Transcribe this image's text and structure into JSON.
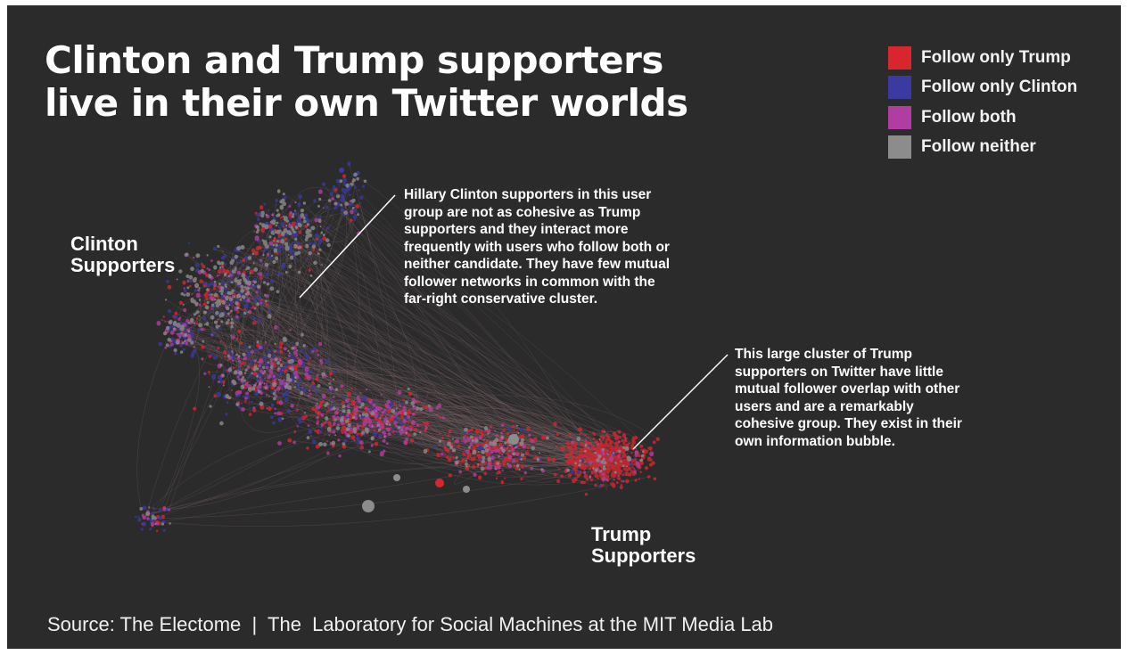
{
  "title_lines": [
    "Clinton and Trump supporters",
    "live in their own Twitter worlds"
  ],
  "legend": [
    {
      "label": "Follow only Trump",
      "color": "#d8262e"
    },
    {
      "label": "Follow only Clinton",
      "color": "#3a3aa0"
    },
    {
      "label": "Follow both",
      "color": "#b03ea0"
    },
    {
      "label": "Follow neither",
      "color": "#8c8c8c"
    }
  ],
  "cluster_labels": {
    "clinton": [
      "Clinton",
      "Supporters"
    ],
    "trump": [
      "Trump",
      "Supporters"
    ]
  },
  "annotations": {
    "clinton": [
      "Hillary Clinton supporters in this user",
      "group are not as cohesive as Trump",
      "supporters and they interact more",
      "frequently with users who follow both or",
      "neither candidate. They have few mutual",
      "follower networks in common with the",
      "far-right conservative cluster."
    ],
    "trump": [
      "This large cluster of Trump",
      "supporters on Twitter have little",
      "mutual follower overlap with other",
      "users and are a remarkably",
      "cohesive group. They exist in their",
      "own information bubble."
    ]
  },
  "source": "Source: The Electome  |  The  Laboratory for Social Machines at the MIT Media Lab",
  "colors": {
    "background": "#2b2b2b",
    "text": "#ffffff",
    "edges": "#8a6e73"
  }
}
